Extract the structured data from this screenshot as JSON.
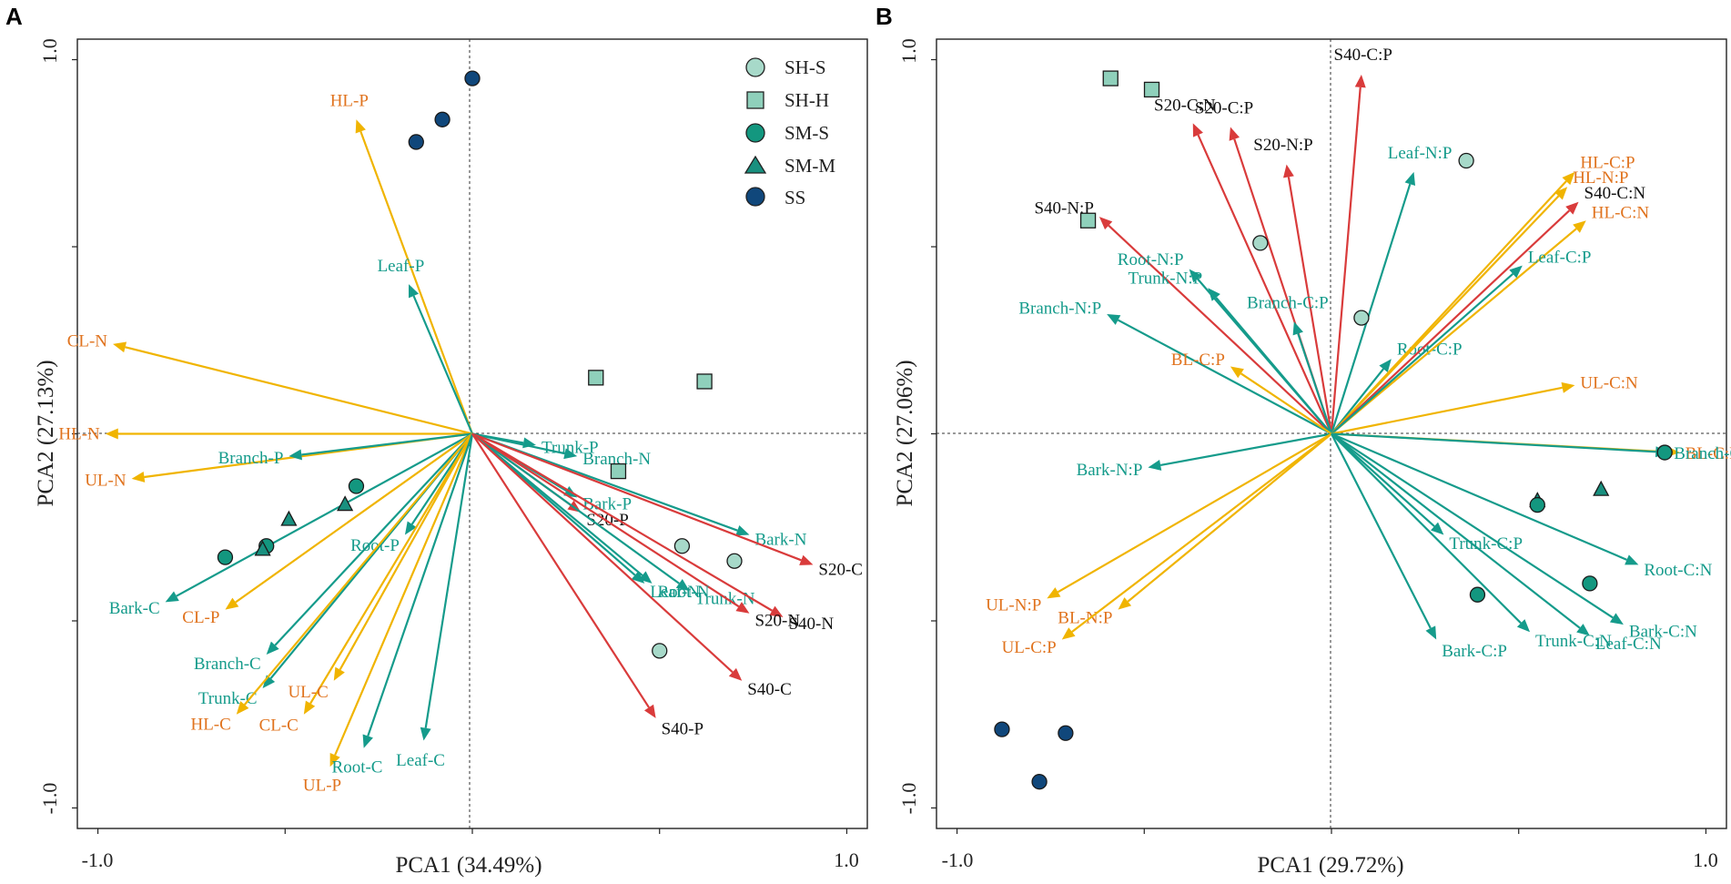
{
  "colors": {
    "plant": "#159b8b",
    "litter": "#f0b400",
    "litter_label": "#e0731e",
    "soil": "#d93b3b",
    "soil_label": "#111111",
    "sh_s": "#a7d9c9",
    "sh_h": "#8fd0bb",
    "sm_s": "#13977f",
    "sm_m": "#19907f",
    "ss": "#10477b"
  },
  "legend": [
    {
      "label": "SH-S",
      "shape": "circle",
      "color_key": "sh_s"
    },
    {
      "label": "SH-H",
      "shape": "square",
      "color_key": "sh_h"
    },
    {
      "label": "SM-S",
      "shape": "circle",
      "color_key": "sm_s"
    },
    {
      "label": "SM-M",
      "shape": "triangle",
      "color_key": "sm_m"
    },
    {
      "label": "SS",
      "shape": "circle",
      "color_key": "ss"
    }
  ],
  "chart_data": [
    {
      "type": "scatter",
      "panel": "A",
      "title": "",
      "xlabel": "PCA1 (34.49%)",
      "ylabel": "PCA2 (27.13%)",
      "xlim": [
        -1.0,
        1.0
      ],
      "ylim": [
        -1.0,
        1.0
      ],
      "xticks": [
        "-1.0",
        "1.0"
      ],
      "yticks": [
        "1.0",
        "-1.0"
      ],
      "vectors": [
        {
          "label": "HL-P",
          "x": -0.31,
          "y": 0.84,
          "group": "litter"
        },
        {
          "label": "Leaf-P",
          "x": -0.17,
          "y": 0.4,
          "group": "plant"
        },
        {
          "label": "CL-N",
          "x": -0.96,
          "y": 0.24,
          "group": "litter"
        },
        {
          "label": "HL-N",
          "x": -0.98,
          "y": 0.0,
          "group": "litter"
        },
        {
          "label": "UL-N",
          "x": -0.91,
          "y": -0.12,
          "group": "litter"
        },
        {
          "label": "Branch-P",
          "x": -0.49,
          "y": -0.06,
          "group": "plant"
        },
        {
          "label": "Root-P",
          "x": -0.18,
          "y": -0.27,
          "group": "plant"
        },
        {
          "label": "Bark-C",
          "x": -0.82,
          "y": -0.45,
          "group": "plant"
        },
        {
          "label": "CL-P",
          "x": -0.66,
          "y": -0.47,
          "group": "litter"
        },
        {
          "label": "Branch-C",
          "x": -0.55,
          "y": -0.59,
          "group": "plant"
        },
        {
          "label": "Trunk-C",
          "x": -0.56,
          "y": -0.68,
          "group": "plant"
        },
        {
          "label": "HL-C",
          "x": -0.63,
          "y": -0.75,
          "group": "litter"
        },
        {
          "label": "CL-C",
          "x": -0.45,
          "y": -0.75,
          "group": "litter"
        },
        {
          "label": "UL-C",
          "x": -0.37,
          "y": -0.66,
          "group": "litter"
        },
        {
          "label": "UL-P",
          "x": -0.38,
          "y": -0.89,
          "group": "litter"
        },
        {
          "label": "Root-C",
          "x": -0.29,
          "y": -0.84,
          "group": "plant"
        },
        {
          "label": "Leaf-C",
          "x": -0.13,
          "y": -0.82,
          "group": "plant"
        },
        {
          "label": "Trunk-P",
          "x": 0.17,
          "y": -0.03,
          "group": "plant"
        },
        {
          "label": "Branch-N",
          "x": 0.28,
          "y": -0.06,
          "group": "plant"
        },
        {
          "label": "Bark-P",
          "x": 0.28,
          "y": -0.17,
          "group": "plant"
        },
        {
          "label": "Bark-N",
          "x": 0.74,
          "y": -0.27,
          "group": "plant"
        },
        {
          "label": "S20-C",
          "x": 0.91,
          "y": -0.35,
          "group": "soil"
        },
        {
          "label": "S20-P",
          "x": 0.29,
          "y": -0.21,
          "group": "soil"
        },
        {
          "label": "Trunk-N",
          "x": 0.58,
          "y": -0.42,
          "group": "plant"
        },
        {
          "label": "Leaf-N",
          "x": 0.46,
          "y": -0.4,
          "group": "plant"
        },
        {
          "label": "S40-N",
          "x": 0.83,
          "y": -0.49,
          "group": "soil"
        },
        {
          "label": "S20-N",
          "x": 0.74,
          "y": -0.48,
          "group": "soil"
        },
        {
          "label": "Root-N",
          "x": 0.48,
          "y": -0.4,
          "group": "plant"
        },
        {
          "label": "S40-C",
          "x": 0.72,
          "y": -0.66,
          "group": "soil"
        },
        {
          "label": "S40-P",
          "x": 0.49,
          "y": -0.76,
          "group": "soil"
        }
      ],
      "points": [
        {
          "group": "SS",
          "x": 0.0,
          "y": 0.95
        },
        {
          "group": "SS",
          "x": -0.08,
          "y": 0.84
        },
        {
          "group": "SS",
          "x": -0.15,
          "y": 0.78
        },
        {
          "group": "SH-H",
          "x": 0.33,
          "y": 0.15
        },
        {
          "group": "SH-H",
          "x": 0.62,
          "y": 0.14
        },
        {
          "group": "SH-H",
          "x": 0.39,
          "y": -0.1
        },
        {
          "group": "SM-S",
          "x": -0.31,
          "y": -0.14
        },
        {
          "group": "SM-M",
          "x": -0.34,
          "y": -0.19
        },
        {
          "group": "SM-M",
          "x": -0.49,
          "y": -0.23
        },
        {
          "group": "SM-S",
          "x": -0.55,
          "y": -0.3
        },
        {
          "group": "SM-M",
          "x": -0.56,
          "y": -0.31
        },
        {
          "group": "SM-S",
          "x": -0.66,
          "y": -0.33
        },
        {
          "group": "SH-S",
          "x": 0.56,
          "y": -0.3
        },
        {
          "group": "SH-S",
          "x": 0.7,
          "y": -0.34
        },
        {
          "group": "SH-S",
          "x": 0.5,
          "y": -0.58
        }
      ]
    },
    {
      "type": "scatter",
      "panel": "B",
      "title": "",
      "xlabel": "PCA1 (29.72%)",
      "ylabel": "PCA2 (27.06%)",
      "xlim": [
        -1.0,
        1.0
      ],
      "ylim": [
        -1.0,
        1.0
      ],
      "xticks": [
        "-1.0",
        "1.0"
      ],
      "yticks": [
        "1.0",
        "-1.0"
      ],
      "vectors": [
        {
          "label": "S40-C:P",
          "x": 0.08,
          "y": 0.96,
          "group": "soil"
        },
        {
          "label": "S20-C:N",
          "x": -0.37,
          "y": 0.83,
          "group": "soil"
        },
        {
          "label": "S20-C:P",
          "x": -0.27,
          "y": 0.82,
          "group": "soil"
        },
        {
          "label": "S20-N:P",
          "x": -0.12,
          "y": 0.72,
          "group": "soil"
        },
        {
          "label": "S40-N:P",
          "x": -0.62,
          "y": 0.58,
          "group": "soil"
        },
        {
          "label": "Leaf-N:P",
          "x": 0.22,
          "y": 0.7,
          "group": "plant"
        },
        {
          "label": "Root-N:P",
          "x": -0.38,
          "y": 0.44,
          "group": "plant"
        },
        {
          "label": "Trunk-N:P",
          "x": -0.33,
          "y": 0.39,
          "group": "plant"
        },
        {
          "label": "Branch-C:P",
          "x": -0.1,
          "y": 0.3,
          "group": "plant"
        },
        {
          "label": "Branch-N:P",
          "x": -0.6,
          "y": 0.32,
          "group": "plant"
        },
        {
          "label": "Root-C:P",
          "x": 0.16,
          "y": 0.2,
          "group": "plant"
        },
        {
          "label": "BL-C:P",
          "x": -0.27,
          "y": 0.18,
          "group": "litter"
        },
        {
          "label": "HL-N:P",
          "x": 0.63,
          "y": 0.66,
          "group": "litter"
        },
        {
          "label": "HL-C:P",
          "x": 0.65,
          "y": 0.7,
          "group": "litter"
        },
        {
          "label": "S40-C:N",
          "x": 0.66,
          "y": 0.62,
          "group": "soil"
        },
        {
          "label": "HL-C:N",
          "x": 0.68,
          "y": 0.57,
          "group": "litter"
        },
        {
          "label": "Leaf-C:P",
          "x": 0.51,
          "y": 0.45,
          "group": "plant"
        },
        {
          "label": "UL-C:N",
          "x": 0.65,
          "y": 0.13,
          "group": "litter"
        },
        {
          "label": "BL-C:N",
          "x": 0.93,
          "y": -0.05,
          "group": "litter"
        },
        {
          "label": "Branch-C:N",
          "x": 0.9,
          "y": -0.05,
          "group": "plant"
        },
        {
          "label": "Bark-N:P",
          "x": -0.49,
          "y": -0.09,
          "group": "plant"
        },
        {
          "label": "UL-N:P",
          "x": -0.76,
          "y": -0.44,
          "group": "litter"
        },
        {
          "label": "BL-N:P",
          "x": -0.57,
          "y": -0.47,
          "group": "litter"
        },
        {
          "label": "UL-C:P",
          "x": -0.72,
          "y": -0.55,
          "group": "litter"
        },
        {
          "label": "Trunk-C:P",
          "x": 0.3,
          "y": -0.27,
          "group": "plant"
        },
        {
          "label": "Bark-C:P",
          "x": 0.28,
          "y": -0.55,
          "group": "plant"
        },
        {
          "label": "Trunk-C:N",
          "x": 0.53,
          "y": -0.53,
          "group": "plant"
        },
        {
          "label": "Leaf-C:N",
          "x": 0.69,
          "y": -0.54,
          "group": "plant"
        },
        {
          "label": "Bark-C:N",
          "x": 0.78,
          "y": -0.51,
          "group": "plant"
        },
        {
          "label": "Root-C:N",
          "x": 0.82,
          "y": -0.35,
          "group": "plant"
        }
      ],
      "points": [
        {
          "group": "SH-H",
          "x": -0.59,
          "y": 0.95
        },
        {
          "group": "SH-H",
          "x": -0.48,
          "y": 0.92
        },
        {
          "group": "SH-H",
          "x": -0.65,
          "y": 0.57
        },
        {
          "group": "SH-S",
          "x": 0.36,
          "y": 0.73
        },
        {
          "group": "SH-S",
          "x": -0.19,
          "y": 0.51
        },
        {
          "group": "SH-S",
          "x": 0.08,
          "y": 0.31
        },
        {
          "group": "SM-S",
          "x": 0.89,
          "y": -0.05
        },
        {
          "group": "SM-M",
          "x": 0.55,
          "y": -0.18
        },
        {
          "group": "SM-S",
          "x": 0.55,
          "y": -0.19
        },
        {
          "group": "SM-M",
          "x": 0.72,
          "y": -0.15
        },
        {
          "group": "SM-S",
          "x": 0.69,
          "y": -0.4
        },
        {
          "group": "SM-S",
          "x": 0.39,
          "y": -0.43
        },
        {
          "group": "SS",
          "x": -0.88,
          "y": -0.79
        },
        {
          "group": "SS",
          "x": -0.71,
          "y": -0.8
        },
        {
          "group": "SS",
          "x": -0.78,
          "y": -0.93
        }
      ]
    }
  ]
}
